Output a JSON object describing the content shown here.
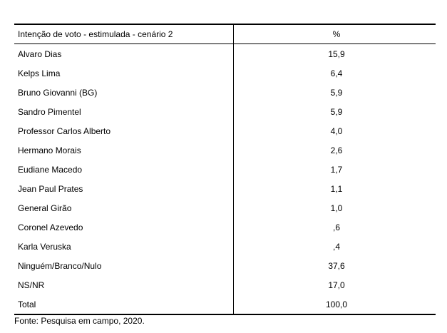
{
  "table": {
    "header": [
      "Intenção de voto - estimulada - cenário 2",
      "%"
    ],
    "rows": [
      [
        "Alvaro Dias",
        "15,9"
      ],
      [
        "Kelps Lima",
        "6,4"
      ],
      [
        "Bruno Giovanni (BG)",
        "5,9"
      ],
      [
        "Sandro Pimentel",
        "5,9"
      ],
      [
        "Professor Carlos Alberto",
        "4,0"
      ],
      [
        "Hermano Morais",
        "2,6"
      ],
      [
        "Eudiane Macedo",
        "1,7"
      ],
      [
        "Jean Paul Prates",
        "1,1"
      ],
      [
        "General Girão",
        "1,0"
      ],
      [
        "Coronel Azevedo",
        ",6"
      ],
      [
        "Karla Veruska",
        ",4"
      ],
      [
        "Ninguém/Branco/Nulo",
        "37,6"
      ],
      [
        "NS/NR",
        "17,0"
      ],
      [
        "Total",
        "100,0"
      ]
    ]
  },
  "footer": {
    "source": "Fonte: Pesquisa em campo, 2020."
  }
}
